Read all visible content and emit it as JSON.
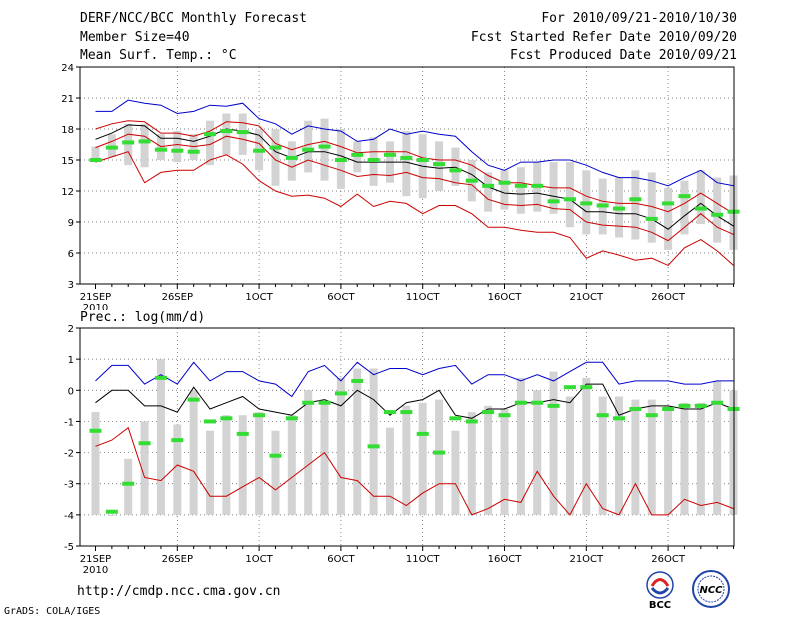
{
  "header": {
    "title": "DERF/NCC/BCC Monthly Forecast",
    "member_size": "Member Size=40",
    "variable": "Mean Surf. Temp.: °C",
    "period": "For 2010/09/21-2010/10/30",
    "started": "Fcst Started Refer Date 2010/09/20",
    "produced": "Fcst Produced Date 2010/09/21"
  },
  "footer": {
    "url": "http://cmdp.ncc.cma.gov.cn",
    "credit": "GrADS: COLA/IGES",
    "logo_bcc": "BCC",
    "logo_ncc": "NCC"
  },
  "colors": {
    "max": "#0000cc",
    "mean": "#000000",
    "min": "#cc0000",
    "bar": "#d3d3d3",
    "obs": "#33dd33"
  },
  "chart_data": [
    {
      "type": "line",
      "title": "Mean Surf. Temp.: °C",
      "x_tick_labels": [
        "21SEP",
        "26SEP",
        "1OCT",
        "6OCT",
        "11OCT",
        "16OCT",
        "21OCT",
        "26OCT"
      ],
      "x_year": "2010",
      "ylim": [
        3,
        24
      ],
      "yticks": [
        3,
        6,
        9,
        12,
        15,
        18,
        21,
        24
      ],
      "grid": true,
      "series": [
        {
          "name": "max",
          "values": [
            19.7,
            19.7,
            20.8,
            20.5,
            20.3,
            19.5,
            19.7,
            20.3,
            20.2,
            20.5,
            19.0,
            18.5,
            17.5,
            18.3,
            18.0,
            17.8,
            16.8,
            17.0,
            18.0,
            17.5,
            17.8,
            17.5,
            17.3,
            15.8,
            14.5,
            14.0,
            14.8,
            14.8,
            15.0,
            15.0,
            14.5,
            13.8,
            13.3,
            13.3,
            13.0,
            12.5,
            13.3,
            14.0,
            12.8,
            12.5
          ]
        },
        {
          "name": "upper",
          "values": [
            18.0,
            18.5,
            18.8,
            18.7,
            17.6,
            17.6,
            17.3,
            17.8,
            18.7,
            18.6,
            18.3,
            16.6,
            16.0,
            16.5,
            16.8,
            16.3,
            15.7,
            15.8,
            15.8,
            15.8,
            15.2,
            15.0,
            15.0,
            14.5,
            13.5,
            12.8,
            12.8,
            12.5,
            12.3,
            12.3,
            11.5,
            11.0,
            10.8,
            10.8,
            10.5,
            10.0,
            10.8,
            11.8,
            10.8,
            9.8
          ]
        },
        {
          "name": "mean",
          "values": [
            17.0,
            17.6,
            18.4,
            18.3,
            17.1,
            17.1,
            16.8,
            17.3,
            18.0,
            17.8,
            17.4,
            15.8,
            15.2,
            15.8,
            15.8,
            15.4,
            14.8,
            14.8,
            14.8,
            14.8,
            14.4,
            14.2,
            14.3,
            13.6,
            12.4,
            11.8,
            11.7,
            11.8,
            11.5,
            11.2,
            10.0,
            10.0,
            9.8,
            9.8,
            9.3,
            8.3,
            9.6,
            10.8,
            9.6,
            8.6
          ]
        },
        {
          "name": "lower",
          "values": [
            16.2,
            16.8,
            17.5,
            17.3,
            16.3,
            16.5,
            16.3,
            16.5,
            17.3,
            17.0,
            16.6,
            15.0,
            14.3,
            15.0,
            14.5,
            14.0,
            13.4,
            13.6,
            13.5,
            13.8,
            13.3,
            13.2,
            12.8,
            12.6,
            11.2,
            10.7,
            10.6,
            10.7,
            10.3,
            10.2,
            9.0,
            8.7,
            8.6,
            8.5,
            8.0,
            7.2,
            8.5,
            9.8,
            8.5,
            7.8
          ]
        },
        {
          "name": "min",
          "values": [
            14.8,
            15.3,
            15.8,
            12.8,
            13.8,
            14.0,
            14.0,
            15.0,
            15.5,
            14.6,
            13.0,
            12.0,
            11.5,
            11.6,
            11.3,
            10.5,
            11.7,
            10.5,
            11.0,
            10.8,
            9.8,
            10.6,
            10.6,
            9.8,
            8.5,
            8.5,
            8.2,
            8.0,
            8.0,
            7.5,
            5.5,
            6.2,
            5.8,
            5.3,
            5.5,
            4.8,
            6.5,
            7.3,
            6.2,
            4.8
          ]
        }
      ],
      "box_low": [
        14.8,
        15.3,
        14.5,
        14.3,
        15.0,
        14.8,
        15.0,
        14.5,
        15.5,
        15.5,
        14.0,
        12.5,
        13.0,
        13.8,
        13.0,
        12.2,
        13.8,
        12.5,
        12.8,
        11.5,
        11.3,
        12.0,
        12.5,
        11.0,
        10.0,
        10.2,
        9.8,
        10.0,
        9.8,
        8.5,
        7.8,
        7.8,
        7.5,
        7.3,
        7.0,
        6.3,
        7.8,
        8.8,
        7.0,
        6.3
      ],
      "box_high": [
        16.3,
        17.5,
        18.5,
        18.5,
        17.5,
        17.8,
        17.5,
        18.8,
        19.5,
        19.5,
        18.0,
        18.0,
        16.8,
        18.8,
        19.0,
        18.0,
        16.8,
        17.2,
        16.8,
        17.8,
        17.5,
        16.8,
        16.2,
        15.0,
        13.8,
        14.0,
        14.3,
        14.8,
        14.8,
        14.8,
        14.0,
        13.2,
        13.3,
        14.0,
        13.8,
        12.3,
        13.0,
        14.0,
        13.3,
        13.5
      ],
      "observed": [
        15.0,
        16.2,
        16.7,
        16.8,
        16.0,
        15.9,
        15.8,
        17.5,
        17.8,
        17.7,
        15.9,
        16.2,
        15.2,
        16.0,
        16.3,
        15.0,
        15.5,
        15.0,
        15.5,
        15.2,
        15.0,
        14.6,
        14.0,
        13.0,
        12.5,
        12.8,
        12.5,
        12.5,
        11.0,
        11.2,
        10.8,
        10.6,
        10.3,
        11.2,
        9.3,
        10.8,
        11.5,
        10.3,
        9.7,
        10.0
      ]
    },
    {
      "type": "line",
      "title": "Prec.: log(mm/d)",
      "x_tick_labels": [
        "21SEP",
        "26SEP",
        "1OCT",
        "6OCT",
        "11OCT",
        "16OCT",
        "21OCT",
        "26OCT"
      ],
      "x_year": "2010",
      "ylim": [
        -5,
        2
      ],
      "yticks": [
        -5,
        -4,
        -3,
        -2,
        -1,
        0,
        1,
        2
      ],
      "grid": true,
      "series": [
        {
          "name": "max",
          "values": [
            0.3,
            0.8,
            0.8,
            0.2,
            0.5,
            0.2,
            0.9,
            0.3,
            0.6,
            0.6,
            0.3,
            0.2,
            -0.2,
            0.6,
            0.8,
            0.3,
            0.9,
            0.5,
            0.7,
            0.7,
            0.5,
            0.7,
            0.8,
            0.2,
            0.5,
            0.5,
            0.3,
            0.5,
            0.3,
            0.6,
            0.9,
            0.9,
            0.2,
            0.3,
            0.3,
            0.3,
            0.2,
            0.2,
            0.3,
            0.3
          ]
        },
        {
          "name": "mean",
          "values": [
            -0.4,
            0.0,
            0.0,
            -0.5,
            -0.5,
            -0.7,
            0.1,
            -0.6,
            -0.4,
            -0.2,
            -0.6,
            -0.7,
            -0.8,
            -0.4,
            -0.3,
            -0.5,
            0.0,
            -0.3,
            -0.8,
            -0.4,
            -0.3,
            0.0,
            -0.8,
            -0.9,
            -0.6,
            -0.6,
            -0.4,
            -0.4,
            -0.3,
            -0.4,
            0.2,
            0.2,
            -0.8,
            -0.6,
            -0.5,
            -0.5,
            -0.6,
            -0.6,
            -0.4,
            -0.6
          ]
        },
        {
          "name": "min",
          "values": [
            -1.8,
            -1.6,
            -1.2,
            -2.8,
            -2.9,
            -2.4,
            -2.6,
            -3.4,
            -3.4,
            -3.1,
            -2.8,
            -3.2,
            -2.8,
            -2.4,
            -2.0,
            -2.8,
            -2.9,
            -3.4,
            -3.4,
            -3.7,
            -3.3,
            -3.0,
            -3.0,
            -4.0,
            -3.8,
            -3.5,
            -3.6,
            -2.6,
            -3.4,
            -4.0,
            -3.0,
            -3.8,
            -4.0,
            -3.0,
            -4.0,
            -4.0,
            -3.5,
            -3.7,
            -3.6,
            -3.8
          ]
        }
      ],
      "bar_top": [
        -0.7,
        -4.0,
        -2.2,
        -1.0,
        1.0,
        -1.1,
        0.0,
        -1.3,
        -0.8,
        -0.8,
        -0.7,
        -1.3,
        -0.8,
        0.0,
        -0.4,
        0.4,
        0.7,
        0.7,
        -1.2,
        -0.5,
        -0.4,
        -0.3,
        -1.3,
        -0.7,
        -0.5,
        -0.6,
        0.4,
        0.0,
        0.6,
        -0.2,
        0.4,
        -0.2,
        -0.2,
        -0.3,
        -0.3,
        -0.5,
        -0.4,
        -0.4,
        0.3,
        0.0
      ],
      "observed": [
        -1.3,
        -3.9,
        -3.0,
        -1.7,
        0.4,
        -1.6,
        -0.3,
        -1.0,
        -0.9,
        -1.4,
        -0.8,
        -2.1,
        -0.9,
        -0.4,
        -0.4,
        -0.1,
        0.3,
        -1.8,
        -0.7,
        -0.7,
        -1.4,
        -2.0,
        -0.9,
        -1.0,
        -0.7,
        -0.8,
        -0.4,
        -0.4,
        -0.5,
        0.1,
        0.1,
        -0.8,
        -0.9,
        -0.6,
        -0.8,
        -0.6,
        -0.5,
        -0.5,
        -0.4,
        -0.6
      ]
    }
  ]
}
